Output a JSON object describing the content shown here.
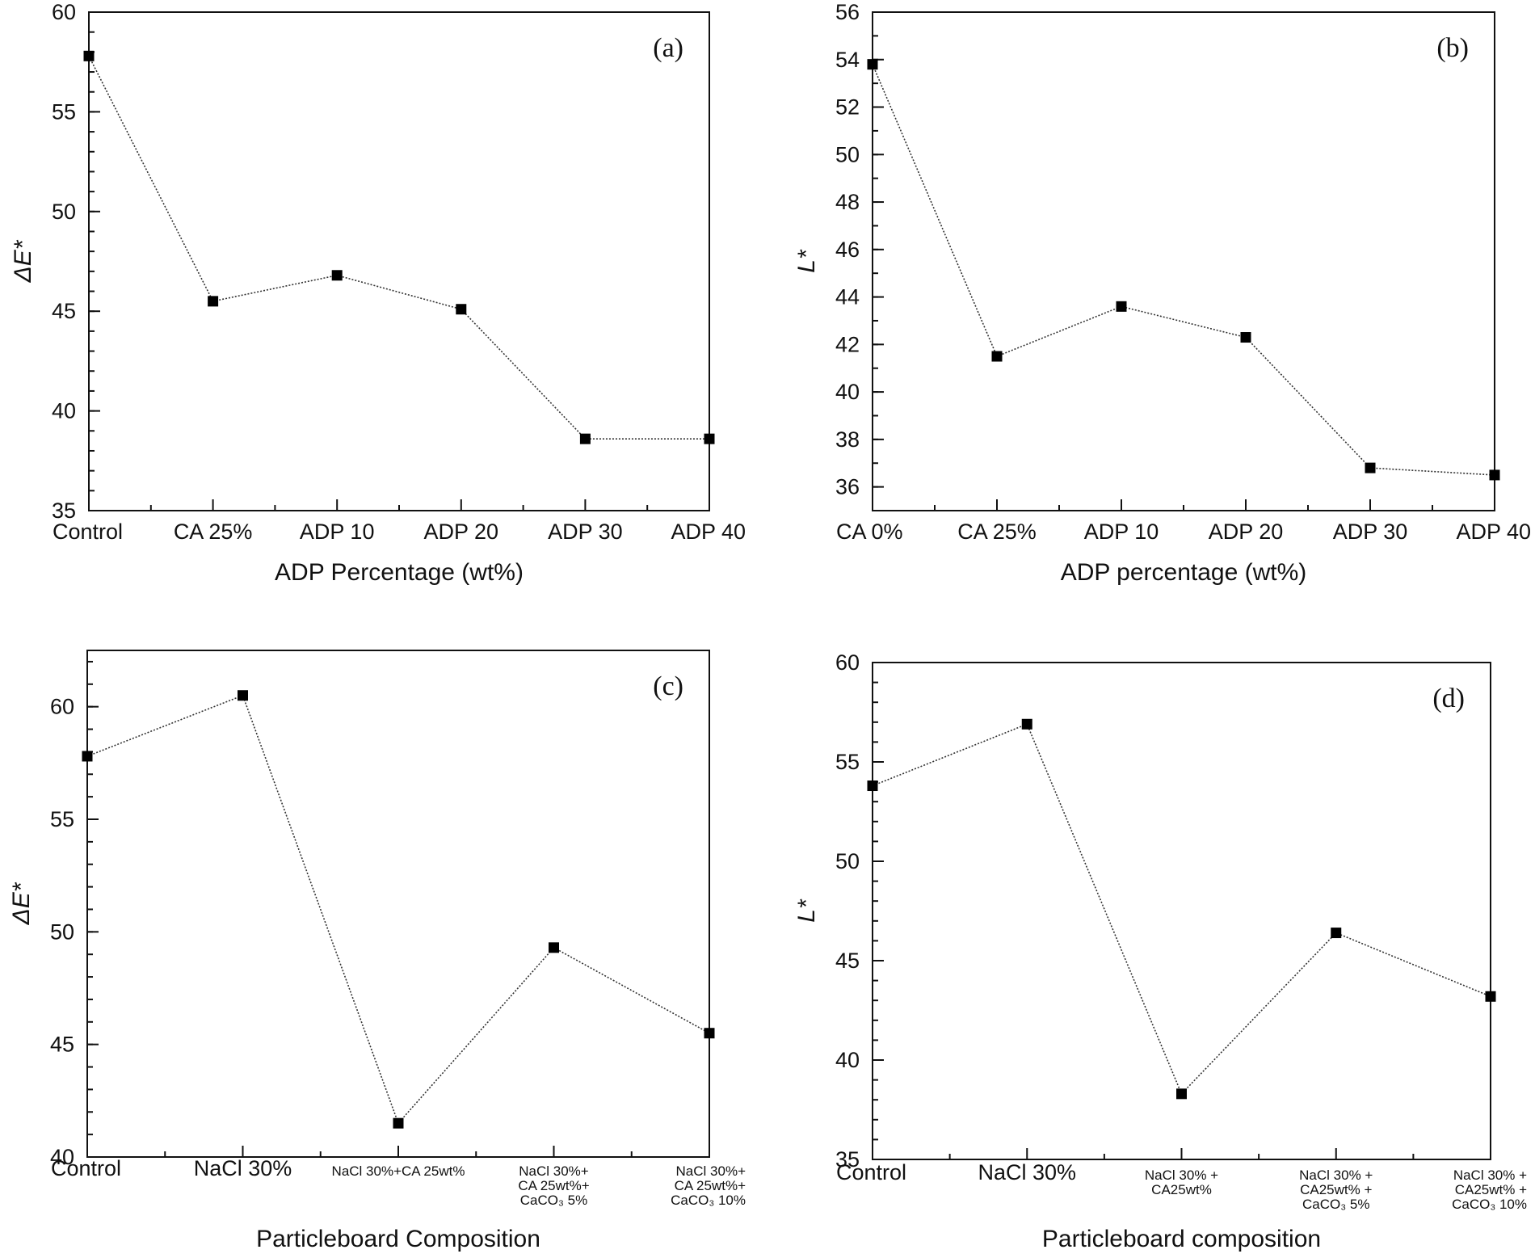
{
  "chart_data": [
    {
      "id": "a",
      "type": "line",
      "panel_label": "(a)",
      "title": "",
      "xlabel": "ADP Percentage (wt%)",
      "ylabel": "ΔE*",
      "categories": [
        [
          "Control"
        ],
        [
          "CA 25%"
        ],
        [
          "ADP 10"
        ],
        [
          "ADP 20"
        ],
        [
          "ADP 30"
        ],
        [
          "ADP 40"
        ]
      ],
      "values": [
        57.8,
        45.5,
        46.8,
        45.1,
        38.6,
        38.6
      ],
      "ylim": [
        35,
        60
      ],
      "yticks": [
        35,
        40,
        45,
        50,
        55,
        60
      ],
      "yminor": 1,
      "grid": false
    },
    {
      "id": "b",
      "type": "line",
      "panel_label": "(b)",
      "title": "",
      "xlabel": "ADP percentage (wt%)",
      "ylabel": "L*",
      "categories": [
        [
          "CA 0%"
        ],
        [
          "CA 25%"
        ],
        [
          "ADP 10"
        ],
        [
          "ADP 20"
        ],
        [
          "ADP 30"
        ],
        [
          "ADP 40"
        ]
      ],
      "values": [
        53.8,
        41.5,
        43.6,
        42.3,
        36.8,
        36.5
      ],
      "ylim": [
        35,
        56
      ],
      "yticks": [
        36,
        38,
        40,
        42,
        44,
        46,
        48,
        50,
        52,
        54,
        56
      ],
      "yminor": 1,
      "grid": false
    },
    {
      "id": "c",
      "type": "line",
      "panel_label": "(c)",
      "title": "",
      "xlabel": "Particleboard Composition",
      "ylabel": "ΔE*",
      "categories": [
        [
          "Control"
        ],
        [
          "NaCl 30%"
        ],
        [
          "NaCl 30%+CA 25wt%"
        ],
        [
          "NaCl 30%+",
          "CA 25wt%+",
          "CaCO₃ 5%"
        ],
        [
          "NaCl 30%+",
          "CA 25wt%+",
          "CaCO₃ 10%"
        ]
      ],
      "values": [
        57.8,
        60.5,
        41.5,
        49.3,
        45.5
      ],
      "ylim": [
        40,
        62.5
      ],
      "yticks": [
        40,
        45,
        50,
        55,
        60
      ],
      "yminor": 1,
      "grid": false
    },
    {
      "id": "d",
      "type": "line",
      "panel_label": "(d)",
      "title": "",
      "xlabel": "Particleboard composition",
      "ylabel": "L*",
      "categories": [
        [
          "Control"
        ],
        [
          "NaCl 30%"
        ],
        [
          "NaCl 30% +",
          "CA25wt%"
        ],
        [
          "NaCl 30% +",
          "CA25wt% +",
          "CaCO₃ 5%"
        ],
        [
          "NaCl 30% +",
          "CA25wt% +",
          "CaCO₃ 10%"
        ]
      ],
      "values": [
        53.8,
        56.9,
        38.3,
        46.4,
        43.2
      ],
      "ylim": [
        35,
        60
      ],
      "yticks": [
        35,
        40,
        45,
        50,
        55,
        60
      ],
      "yminor": 1,
      "grid": false
    }
  ]
}
